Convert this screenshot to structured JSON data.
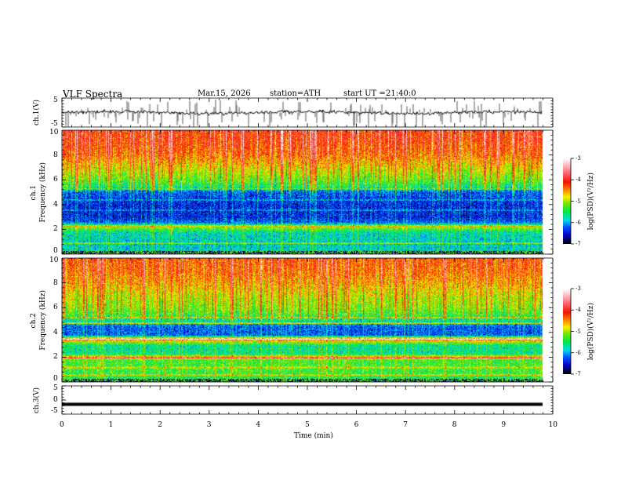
{
  "header": {
    "title": "VLF  Spectra",
    "date": "Mar.15, 2026",
    "station": "station=ATH",
    "start_label": "start  UT  =",
    "start_time": "21:40:0"
  },
  "chart_data": [
    {
      "type": "line",
      "name": "ch1-waveform",
      "ylabel": "ch.1(V)",
      "ylim": [
        -5,
        5
      ],
      "yticks": [
        "5",
        "-5"
      ],
      "xlim": [
        0,
        10
      ],
      "description_values": {
        "baseline_V": 0,
        "typical_spike_V": [
          -4.5,
          4.5
        ]
      }
    },
    {
      "type": "heatmap",
      "name": "ch1-spectrogram",
      "ylabel": "ch.1",
      "ylabel2": "Frequency  (kHz)",
      "ylim": [
        0,
        10
      ],
      "yticks": [
        "0",
        "2",
        "4",
        "6",
        "8",
        "10"
      ],
      "xlim": [
        0,
        10
      ],
      "colorbar": {
        "label": "log(PSD)(V²/Hz)",
        "range": [
          -7,
          -3
        ],
        "ticks": [
          "-3",
          "-4",
          "-5",
          "-6",
          "-7"
        ]
      },
      "profile_khz": [
        0,
        0.5,
        1,
        1.8,
        2.2,
        2.6,
        3,
        4,
        5,
        5.5,
        6,
        7,
        8,
        9,
        10
      ],
      "profile_logpsd": [
        -5.6,
        -5.8,
        -5.8,
        -5.7,
        -5.0,
        -6.2,
        -6.4,
        -6.4,
        -6.2,
        -5.4,
        -5.1,
        -4.7,
        -4.3,
        -4.1,
        -4.0
      ]
    },
    {
      "type": "heatmap",
      "name": "ch2-spectrogram",
      "ylabel": "ch.2",
      "ylabel2": "Frequency  (kHz)",
      "ylim": [
        0,
        10
      ],
      "yticks": [
        "0",
        "2",
        "4",
        "6",
        "8",
        "10"
      ],
      "xlim": [
        0,
        10
      ],
      "colorbar": {
        "label": "log(PSD)(V²/Hz)",
        "range": [
          -7,
          -3
        ],
        "ticks": [
          "-3",
          "-4",
          "-5",
          "-6",
          "-7"
        ]
      },
      "profile_khz": [
        0,
        0.5,
        1,
        1.8,
        2.0,
        2.3,
        3,
        3.5,
        3.8,
        4.5,
        5,
        5.5,
        6,
        7,
        8,
        9,
        10
      ],
      "profile_logpsd": [
        -5.4,
        -5.4,
        -5.3,
        -5.3,
        -4.4,
        -5.6,
        -5.6,
        -4.3,
        -6.2,
        -6.2,
        -5.6,
        -5.2,
        -5.0,
        -4.8,
        -4.5,
        -4.3,
        -4.2
      ]
    },
    {
      "type": "line",
      "name": "ch3-waveform",
      "ylabel": "ch.3(V)",
      "ylim": [
        -5,
        5
      ],
      "yticks": [
        "5",
        "0",
        "-5"
      ],
      "xlim": [
        0,
        10
      ],
      "description_values": {
        "baseline_V": -1.5
      }
    }
  ],
  "xaxis": {
    "label": "Time  (min)",
    "ticks": [
      "0",
      "1",
      "2",
      "3",
      "4",
      "5",
      "6",
      "7",
      "8",
      "9",
      "10"
    ]
  }
}
